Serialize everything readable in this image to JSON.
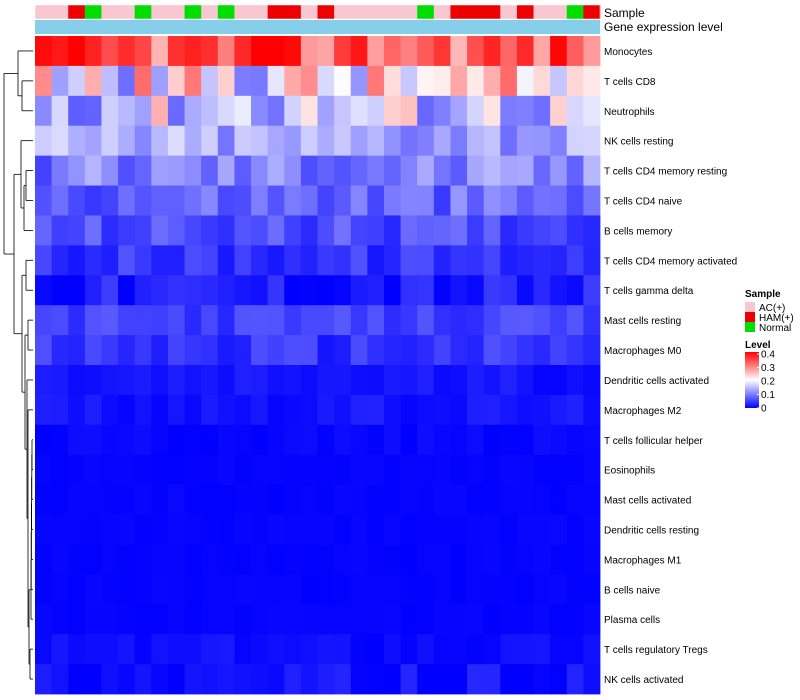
{
  "chart_data": {
    "type": "heatmap",
    "title": "",
    "annotation_tracks": [
      "Sample",
      "Gene expression level"
    ],
    "sample_groups": [
      "A",
      "A",
      "H",
      "N",
      "A",
      "A",
      "N",
      "A",
      "A",
      "N",
      "A",
      "N",
      "A",
      "A",
      "H",
      "H",
      "A",
      "H",
      "A",
      "A",
      "A",
      "A",
      "A",
      "N",
      "A",
      "H",
      "H",
      "H",
      "A",
      "H",
      "A",
      "A",
      "N",
      "H"
    ],
    "rows": [
      "Monocytes",
      "T cells CD8",
      "Neutrophils",
      "NK cells resting",
      "T cells CD4 memory resting",
      "T cells CD4 naive",
      "B cells memory",
      "T cells CD4 memory activated",
      "T cells gamma delta",
      "Mast cells resting",
      "Macrophages M0",
      "Dendritic cells activated",
      "Macrophages M2",
      "T cells follicular helper",
      "Eosinophils",
      "Mast cells activated",
      "Dendritic cells resting",
      "Macrophages M1",
      "B cells naive",
      "Plasma cells",
      "T cells regulatory  Tregs",
      "NK cells activated"
    ],
    "row_means": [
      0.33,
      0.2,
      0.17,
      0.13,
      0.1,
      0.08,
      0.06,
      0.04,
      0.02,
      0.05,
      0.04,
      0.015,
      0.015,
      0.005,
      0.003,
      0.003,
      0.003,
      0.003,
      0.003,
      0.003,
      0.01,
      0.01
    ],
    "row_spread": [
      0.08,
      0.12,
      0.1,
      0.05,
      0.05,
      0.04,
      0.03,
      0.025,
      0.03,
      0.02,
      0.025,
      0.012,
      0.012,
      0.006,
      0.003,
      0.003,
      0.003,
      0.003,
      0.003,
      0.003,
      0.01,
      0.02
    ],
    "n_samples": 34,
    "legend_sample": {
      "title": "Sample",
      "entries": [
        {
          "key": "A",
          "label": "AC(+)",
          "color": "#f8c7d1"
        },
        {
          "key": "H",
          "label": "HAM(+)",
          "color": "#ee0000"
        },
        {
          "key": "N",
          "label": "Normal",
          "color": "#00dd00"
        }
      ]
    },
    "legend_level": {
      "title": "Level",
      "ticks": [
        "0.4",
        "0.3",
        "0.2",
        "0.1",
        "0"
      ],
      "range": [
        0,
        0.4
      ]
    },
    "colors": {
      "low": "#0000ff",
      "mid": "#ffffff",
      "high": "#ff0000",
      "gene_expression_bar": "#87ceeb"
    }
  }
}
